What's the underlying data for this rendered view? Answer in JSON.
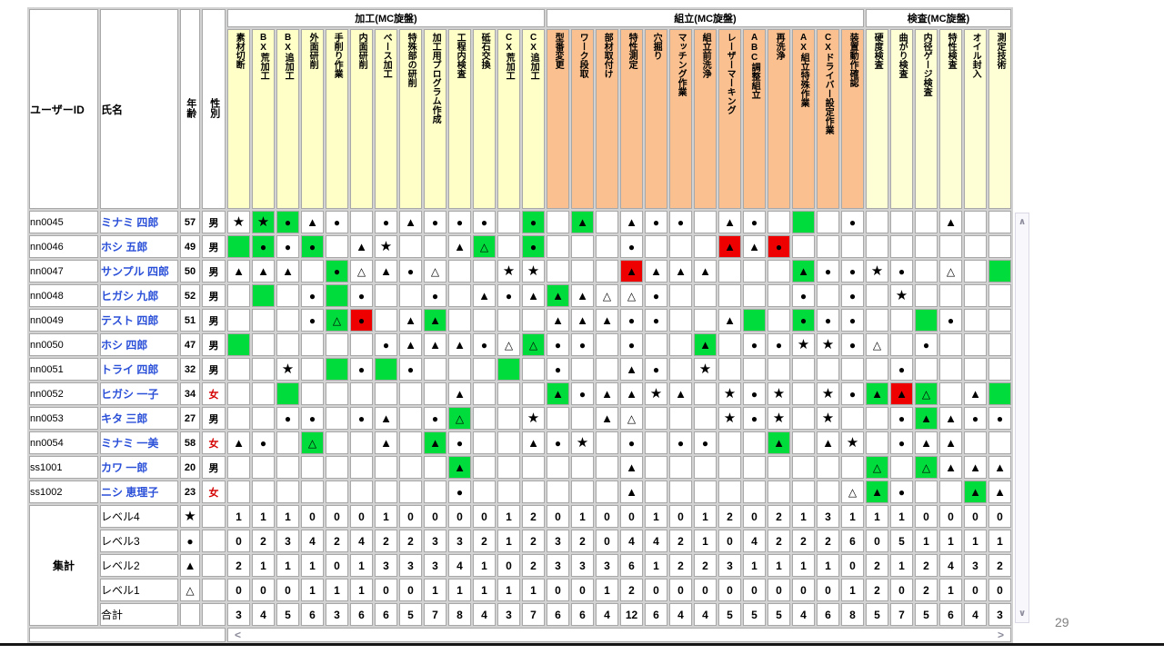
{
  "page": {
    "number": "29"
  },
  "scrollbar": {
    "up": "∧",
    "down": "∨",
    "left": "<",
    "right": ">"
  },
  "table": {
    "corner_headers": [
      "ユーザーID",
      "氏名",
      "年齢",
      "性別"
    ],
    "symbols": {
      "s": "★",
      "c": "●",
      "t": "▲",
      "o": "△"
    },
    "bg": {
      "g": "#00dc3c",
      "r": "#ee0000"
    },
    "colors": {
      "green_highlight": "#00dc3c",
      "red_highlight": "#ee0000",
      "name_link": "#2b50d8",
      "female_text": "#d40000",
      "process_group": "#ffffc8",
      "assembly_group": "#fac08f",
      "inspection_group": "#ffffd6"
    },
    "groups": [
      {
        "label": "加工(MC旋盤)",
        "color": "#ffffc8",
        "skills": [
          "素材切断",
          "BX荒加工",
          "BX追加工",
          "外面研削",
          "手削り作業",
          "内面研削",
          "ベース加工",
          "特殊部の研削",
          "加工用プログラム作成",
          "工程内検査",
          "砥石交換",
          "CX荒加工",
          "CX追加工"
        ]
      },
      {
        "label": "組立(MC旋盤)",
        "color": "#fac08f",
        "skills": [
          "型番変更",
          "ワーク段取",
          "部材取付け",
          "特性測定",
          "穴掘り",
          "マッチング作業",
          "組立前洗浄",
          "レーザーマーキング",
          "ABC調整組立",
          "再洗浄",
          "AX組立特殊作業",
          "CXドライバー設定作業",
          "装置動作確認"
        ]
      },
      {
        "label": "検査(MC旋盤)",
        "color": "#ffffd6",
        "skills": [
          "硬度検査",
          "曲がり検査",
          "内径ゲージ検査",
          "特性検査",
          "オイル封入",
          "測定技術"
        ]
      }
    ],
    "rows": [
      {
        "id": "nn0045",
        "name": "ミナミ 四郎",
        "age": "57",
        "gender": "男",
        "cells": [
          "s-",
          "sg",
          "cg",
          "t-",
          "c-",
          "--",
          "c-",
          "t-",
          "c-",
          "c-",
          "c-",
          "--",
          "cg",
          "--",
          "tg",
          "--",
          "t-",
          "c-",
          "c-",
          "--",
          "t-",
          "c-",
          "--",
          "-g",
          "--",
          "c-",
          "--",
          "--",
          "--",
          "t-",
          "--",
          "--"
        ]
      },
      {
        "id": "nn0046",
        "name": "ホシ 五郎",
        "age": "49",
        "gender": "男",
        "cells": [
          "-g",
          "cg",
          "c-",
          "cg",
          "--",
          "t-",
          "s-",
          "--",
          "--",
          "t-",
          "og",
          "--",
          "cg",
          "--",
          "--",
          "--",
          "c-",
          "--",
          "--",
          "--",
          "tr",
          "t-",
          "cr",
          "--",
          "--",
          "--",
          "--",
          "--",
          "--",
          "--",
          "--",
          "--"
        ]
      },
      {
        "id": "nn0047",
        "name": "サンプル 四郎",
        "age": "50",
        "gender": "男",
        "cells": [
          "t-",
          "t-",
          "t-",
          "--",
          "cg",
          "o-",
          "t-",
          "c-",
          "o-",
          "--",
          "--",
          "s-",
          "s-",
          "--",
          "--",
          "--",
          "tr",
          "t-",
          "t-",
          "t-",
          "--",
          "--",
          "--",
          "tg",
          "c-",
          "c-",
          "s-",
          "c-",
          "--",
          "o-",
          "--",
          "-g"
        ]
      },
      {
        "id": "nn0048",
        "name": "ヒガシ 九郎",
        "age": "52",
        "gender": "男",
        "cells": [
          "--",
          "-g",
          "--",
          "c-",
          "-g",
          "c-",
          "--",
          "--",
          "c-",
          "--",
          "t-",
          "c-",
          "t-",
          "tg",
          "t-",
          "o-",
          "o-",
          "c-",
          "--",
          "--",
          "--",
          "--",
          "--",
          "c-",
          "--",
          "c-",
          "--",
          "s-",
          "--",
          "--",
          "--",
          "--"
        ]
      },
      {
        "id": "nn0049",
        "name": "テスト 四郎",
        "age": "51",
        "gender": "男",
        "cells": [
          "--",
          "--",
          "--",
          "c-",
          "og",
          "cr",
          "--",
          "t-",
          "tg",
          "--",
          "--",
          "--",
          "--",
          "t-",
          "t-",
          "t-",
          "c-",
          "c-",
          "--",
          "--",
          "t-",
          "-g",
          "--",
          "cg",
          "c-",
          "c-",
          "--",
          "--",
          "-g",
          "c-",
          "--",
          "--"
        ]
      },
      {
        "id": "nn0050",
        "name": "ホシ 四郎",
        "age": "47",
        "gender": "男",
        "cells": [
          "-g",
          "--",
          "--",
          "--",
          "--",
          "--",
          "c-",
          "t-",
          "t-",
          "t-",
          "c-",
          "o-",
          "og",
          "c-",
          "c-",
          "--",
          "c-",
          "--",
          "--",
          "tg",
          "--",
          "c-",
          "c-",
          "s-",
          "s-",
          "c-",
          "o-",
          "--",
          "c-",
          "--",
          "--",
          "--"
        ]
      },
      {
        "id": "nn0051",
        "name": "トライ 四郎",
        "age": "32",
        "gender": "男",
        "cells": [
          "--",
          "--",
          "s-",
          "--",
          "-g",
          "c-",
          "-g",
          "c-",
          "--",
          "--",
          "--",
          "-g",
          "--",
          "c-",
          "--",
          "--",
          "t-",
          "c-",
          "--",
          "s-",
          "--",
          "--",
          "--",
          "--",
          "--",
          "--",
          "--",
          "c-",
          "--",
          "--",
          "--",
          "--"
        ]
      },
      {
        "id": "nn0052",
        "name": "ヒガシ 一子",
        "age": "34",
        "gender": "女",
        "cells": [
          "--",
          "--",
          "-g",
          "--",
          "--",
          "--",
          "--",
          "--",
          "--",
          "t-",
          "--",
          "--",
          "--",
          "tg",
          "c-",
          "t-",
          "t-",
          "s-",
          "t-",
          "--",
          "s-",
          "c-",
          "s-",
          "--",
          "s-",
          "c-",
          "tg",
          "tr",
          "og",
          "--",
          "t-",
          "-g"
        ]
      },
      {
        "id": "nn0053",
        "name": "キタ 三郎",
        "age": "27",
        "gender": "男",
        "cells": [
          "--",
          "--",
          "c-",
          "c-",
          "--",
          "c-",
          "t-",
          "--",
          "c-",
          "og",
          "--",
          "--",
          "s-",
          "--",
          "--",
          "t-",
          "o-",
          "--",
          "--",
          "--",
          "s-",
          "c-",
          "s-",
          "--",
          "s-",
          "--",
          "--",
          "c-",
          "tg",
          "t-",
          "c-",
          "c-"
        ]
      },
      {
        "id": "nn0054",
        "name": "ミナミ 一美",
        "age": "58",
        "gender": "女",
        "cells": [
          "t-",
          "c-",
          "--",
          "og",
          "--",
          "--",
          "t-",
          "--",
          "tg",
          "c-",
          "--",
          "--",
          "t-",
          "c-",
          "s-",
          "--",
          "c-",
          "--",
          "c-",
          "c-",
          "--",
          "--",
          "tg",
          "--",
          "t-",
          "s-",
          "--",
          "c-",
          "t-",
          "t-",
          "--",
          "--"
        ]
      },
      {
        "id": "ss1001",
        "name": "カワ 一郎",
        "age": "20",
        "gender": "男",
        "cells": [
          "--",
          "--",
          "--",
          "--",
          "--",
          "--",
          "--",
          "--",
          "--",
          "tg",
          "--",
          "--",
          "--",
          "--",
          "--",
          "--",
          "t-",
          "--",
          "--",
          "--",
          "--",
          "--",
          "--",
          "--",
          "--",
          "--",
          "og",
          "--",
          "og",
          "t-",
          "t-",
          "t-"
        ]
      },
      {
        "id": "ss1002",
        "name": "ニシ 恵理子",
        "age": "23",
        "gender": "女",
        "cells": [
          "--",
          "--",
          "--",
          "--",
          "--",
          "--",
          "--",
          "--",
          "--",
          "c-",
          "--",
          "--",
          "--",
          "--",
          "--",
          "--",
          "t-",
          "--",
          "--",
          "--",
          "--",
          "--",
          "--",
          "--",
          "--",
          "o-",
          "tg",
          "c-",
          "--",
          "--",
          "tg",
          "t-"
        ]
      }
    ],
    "summary": {
      "label": "集計",
      "levels": [
        {
          "label": "レベル4",
          "sym": "s",
          "counts": [
            1,
            1,
            1,
            0,
            0,
            0,
            1,
            0,
            0,
            0,
            0,
            1,
            2,
            0,
            1,
            0,
            0,
            1,
            0,
            1,
            2,
            0,
            2,
            1,
            3,
            1,
            1,
            1,
            0,
            0,
            0,
            0
          ]
        },
        {
          "label": "レベル3",
          "sym": "c",
          "counts": [
            0,
            2,
            3,
            4,
            2,
            4,
            2,
            2,
            3,
            3,
            2,
            1,
            2,
            3,
            2,
            0,
            4,
            4,
            2,
            1,
            0,
            4,
            2,
            2,
            2,
            6,
            0,
            5,
            1,
            1,
            1,
            1
          ]
        },
        {
          "label": "レベル2",
          "sym": "t",
          "counts": [
            2,
            1,
            1,
            1,
            0,
            1,
            3,
            3,
            3,
            4,
            1,
            0,
            2,
            3,
            3,
            3,
            6,
            1,
            2,
            2,
            3,
            1,
            1,
            1,
            1,
            0,
            2,
            1,
            2,
            4,
            3,
            2
          ]
        },
        {
          "label": "レベル1",
          "sym": "o",
          "counts": [
            0,
            0,
            0,
            1,
            1,
            1,
            0,
            0,
            1,
            1,
            1,
            1,
            1,
            0,
            0,
            1,
            2,
            0,
            0,
            0,
            0,
            0,
            0,
            0,
            0,
            1,
            2,
            0,
            2,
            1,
            0,
            0
          ]
        }
      ],
      "total": {
        "label": "合計",
        "counts": [
          3,
          4,
          5,
          6,
          3,
          6,
          6,
          5,
          7,
          8,
          4,
          3,
          7,
          6,
          6,
          4,
          12,
          6,
          4,
          4,
          5,
          5,
          5,
          4,
          6,
          8,
          5,
          7,
          5,
          6,
          4,
          3
        ]
      }
    }
  }
}
